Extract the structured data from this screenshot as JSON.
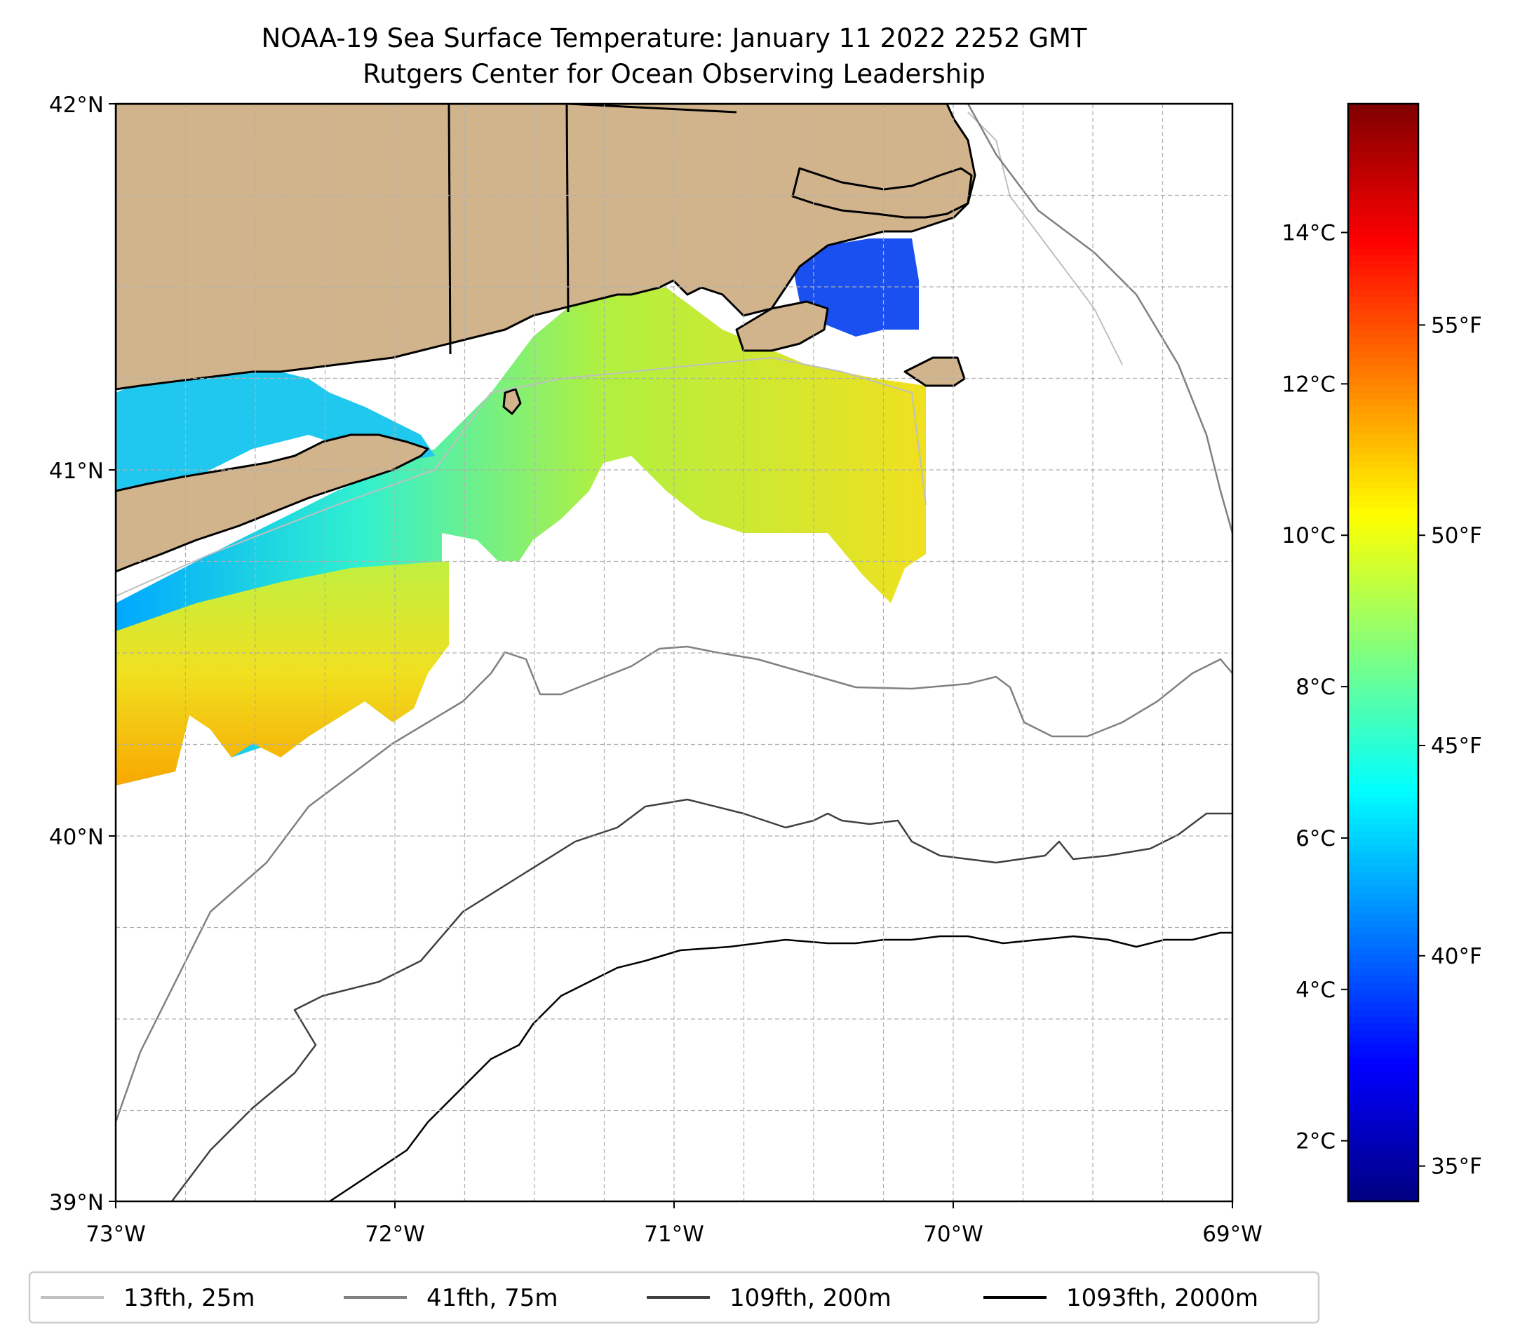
{
  "title": {
    "line1": "NOAA-19 Sea Surface Temperature: January 11 2022 2252 GMT",
    "line2": "Rutgers Center for Ocean Observing Leadership"
  },
  "map": {
    "lon_range": [
      -73,
      -69
    ],
    "lat_range": [
      39,
      42
    ],
    "x_ticks": [
      {
        "lon": -73,
        "label": "73°W"
      },
      {
        "lon": -72,
        "label": "72°W"
      },
      {
        "lon": -71,
        "label": "71°W"
      },
      {
        "lon": -70,
        "label": "70°W"
      },
      {
        "lon": -69,
        "label": "69°W"
      }
    ],
    "y_ticks": [
      {
        "lat": 42,
        "label": "42°N"
      },
      {
        "lat": 41,
        "label": "41°N"
      },
      {
        "lat": 40,
        "label": "40°N"
      },
      {
        "lat": 39,
        "label": "39°N"
      }
    ],
    "gridlines": "dashed light gray every 0.25°",
    "colors": {
      "land": "#d2b48c",
      "coast": "#000000",
      "ocean": "#ffffff"
    }
  },
  "colorbar": {
    "colormap": "jet",
    "celsius_ticks": [
      {
        "value": 2,
        "label": "2°C"
      },
      {
        "value": 4,
        "label": "4°C"
      },
      {
        "value": 6,
        "label": "6°C"
      },
      {
        "value": 8,
        "label": "8°C"
      },
      {
        "value": 10,
        "label": "10°C"
      },
      {
        "value": 12,
        "label": "12°C"
      },
      {
        "value": 14,
        "label": "14°C"
      }
    ],
    "fahrenheit_ticks": [
      {
        "value": 35,
        "label": "35°F"
      },
      {
        "value": 40,
        "label": "40°F"
      },
      {
        "value": 45,
        "label": "45°F"
      },
      {
        "value": 50,
        "label": "50°F"
      },
      {
        "value": 55,
        "label": "55°F"
      }
    ],
    "range_c": [
      1.2,
      15.7
    ]
  },
  "legend": {
    "items": [
      {
        "label": "13fth, 25m",
        "color": "#c0c0c0"
      },
      {
        "label": "41fth, 75m",
        "color": "#808080"
      },
      {
        "label": "109fth, 200m",
        "color": "#404040"
      },
      {
        "label": "1093fth, 2000m",
        "color": "#000000"
      }
    ]
  }
}
